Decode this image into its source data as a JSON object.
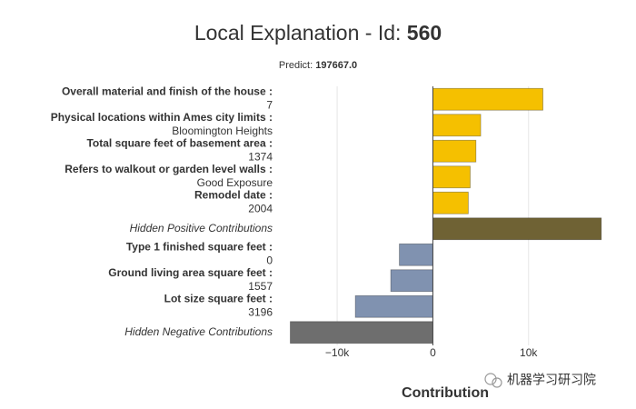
{
  "chart_data": {
    "type": "bar",
    "orientation": "horizontal",
    "title": "Local Explanation - Id: ",
    "title_id": "560",
    "subtitle": "Predict: ",
    "subtitle_value": "197667.0",
    "categories": [
      "Overall material and finish of the house :",
      "Physical locations within Ames city limits :",
      "Total square feet of basement area :",
      "Refers to walkout or garden level walls :",
      "Remodel date :",
      "Hidden Positive Contributions",
      "Type 1 finished square feet :",
      "Ground living area square feet :",
      "Lot size square feet :",
      "Hidden Negative Contributions"
    ],
    "feature_values": [
      "7",
      "Bloomington Heights",
      "1374",
      "Good Exposure",
      "2004",
      null,
      "0",
      "1557",
      "3196",
      null
    ],
    "values": [
      11500,
      5000,
      4500,
      3900,
      3700,
      17600,
      -3500,
      -4400,
      -8100,
      -14900
    ],
    "colors": [
      "#f5c000",
      "#f5c000",
      "#f5c000",
      "#f5c000",
      "#f5c000",
      "#6f6234",
      "#8092b0",
      "#8092b0",
      "#8092b0",
      "#6e6e6e"
    ],
    "xlim": [
      -15800,
      18000
    ],
    "xticks": [
      {
        "value": -10000,
        "label": "−10k"
      },
      0,
      {
        "value": 10000,
        "label": "10k"
      }
    ],
    "grid": true,
    "xlabel": "Contribution",
    "watermark": "机器学习研习院"
  }
}
